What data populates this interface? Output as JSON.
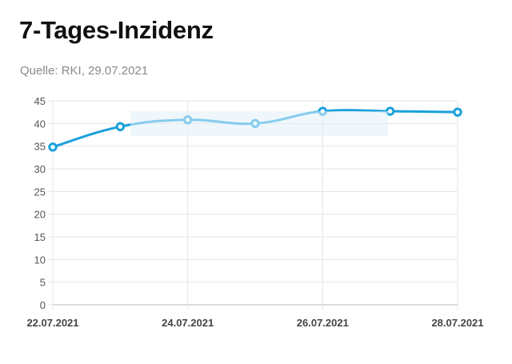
{
  "header": {
    "title": "7-Tages-Inzidenz",
    "source": "Quelle: RKI, 29.07.2021"
  },
  "colors": {
    "line": "#1aa0dc",
    "grid": "#e5e5e5",
    "axis": "#bbbbbb"
  },
  "chart_data": {
    "type": "line",
    "title": "7-Tages-Inzidenz",
    "xlabel": "",
    "ylabel": "",
    "x": [
      "22.07.2021",
      "23.07.2021",
      "24.07.2021",
      "25.07.2021",
      "26.07.2021",
      "27.07.2021",
      "28.07.2021"
    ],
    "x_tick_labels": [
      "22.07.2021",
      "24.07.2021",
      "26.07.2021",
      "28.07.2021"
    ],
    "series": [
      {
        "values": [
          34.8,
          39.3,
          40.8,
          40.0,
          42.7,
          42.7,
          42.5
        ]
      }
    ],
    "ylim": [
      0,
      45
    ],
    "y_ticks": [
      0,
      5,
      10,
      15,
      20,
      25,
      30,
      35,
      40,
      45
    ],
    "grid": true,
    "legend": "none"
  }
}
